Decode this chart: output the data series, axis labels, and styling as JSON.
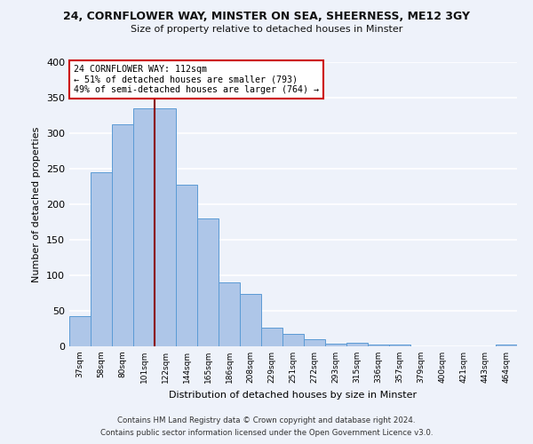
{
  "title": "24, CORNFLOWER WAY, MINSTER ON SEA, SHEERNESS, ME12 3GY",
  "subtitle": "Size of property relative to detached houses in Minster",
  "xlabel": "Distribution of detached houses by size in Minster",
  "ylabel": "Number of detached properties",
  "footnote1": "Contains HM Land Registry data © Crown copyright and database right 2024.",
  "footnote2": "Contains public sector information licensed under the Open Government Licence v3.0.",
  "bar_labels": [
    "37sqm",
    "58sqm",
    "80sqm",
    "101sqm",
    "122sqm",
    "144sqm",
    "165sqm",
    "186sqm",
    "208sqm",
    "229sqm",
    "251sqm",
    "272sqm",
    "293sqm",
    "315sqm",
    "336sqm",
    "357sqm",
    "379sqm",
    "400sqm",
    "421sqm",
    "443sqm",
    "464sqm"
  ],
  "bar_heights": [
    42,
    245,
    312,
    335,
    335,
    228,
    180,
    90,
    74,
    26,
    17,
    10,
    4,
    5,
    3,
    3,
    0,
    0,
    0,
    0,
    3
  ],
  "bar_color": "#aec6e8",
  "bar_edge_color": "#5b9bd5",
  "vline_x": 3.5,
  "vline_color": "#8b0000",
  "annotation_title": "24 CORNFLOWER WAY: 112sqm",
  "annotation_line1": "← 51% of detached houses are smaller (793)",
  "annotation_line2": "49% of semi-detached houses are larger (764) →",
  "annotation_box_color": "#ffffff",
  "annotation_box_edge": "#cc0000",
  "ylim": [
    0,
    400
  ],
  "yticks": [
    0,
    50,
    100,
    150,
    200,
    250,
    300,
    350,
    400
  ],
  "background_color": "#eef2fa",
  "grid_color": "#ffffff"
}
